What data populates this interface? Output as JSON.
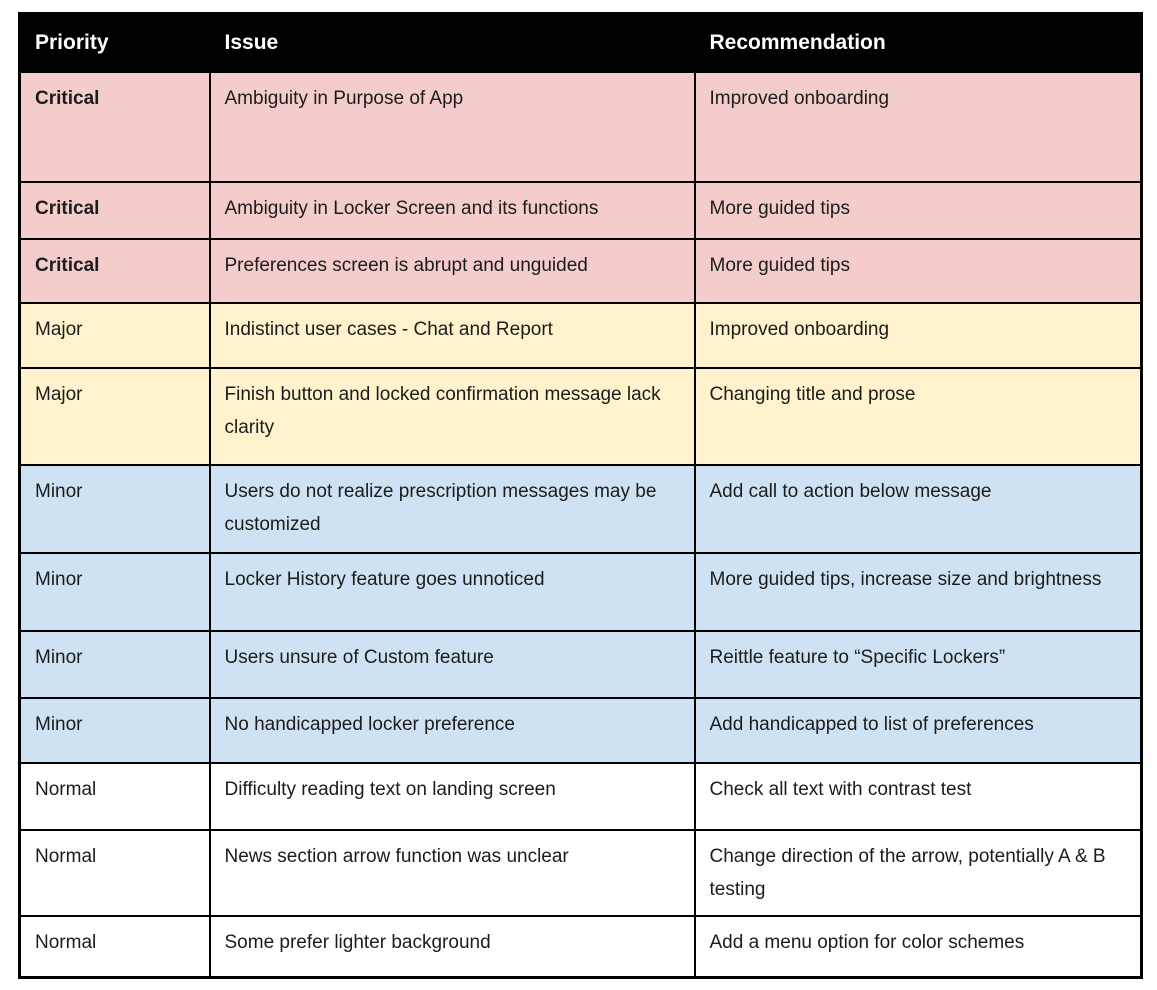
{
  "table": {
    "header": {
      "background": "#000000",
      "text_color": "#ffffff"
    },
    "columns": [
      {
        "label": "Priority"
      },
      {
        "label": "Issue"
      },
      {
        "label": "Recommendation"
      }
    ],
    "severity_colors": {
      "critical": "#f4cccc",
      "major": "#fff2cc",
      "minor": "#cfe2f3",
      "normal": "#ffffff"
    },
    "text_color": "#1c1c1c",
    "rows": [
      {
        "severity": "critical",
        "priority": "Critical",
        "issue": "Ambiguity in Purpose of App",
        "recommendation": "Improved onboarding"
      },
      {
        "severity": "critical",
        "priority": "Critical",
        "issue": "Ambiguity in Locker Screen and its functions",
        "recommendation": "More guided tips"
      },
      {
        "severity": "critical",
        "priority": "Critical",
        "issue": "Preferences screen is abrupt and unguided",
        "recommendation": "More guided tips"
      },
      {
        "severity": "major",
        "priority": "Major",
        "issue": "Indistinct user cases - Chat and Report",
        "recommendation": "Improved onboarding"
      },
      {
        "severity": "major",
        "priority": "Major",
        "issue": "Finish button and locked confirmation message lack clarity",
        "recommendation": "Changing title and prose"
      },
      {
        "severity": "minor",
        "priority": "Minor",
        "issue": "Users do not realize prescription messages may be customized",
        "recommendation": "Add call to action below message"
      },
      {
        "severity": "minor",
        "priority": "Minor",
        "issue": "Locker History feature goes unnoticed",
        "recommendation": "More guided tips, increase size and brightness"
      },
      {
        "severity": "minor",
        "priority": "Minor",
        "issue": "Users unsure of Custom feature",
        "recommendation": "Reittle feature to “Specific Lockers”"
      },
      {
        "severity": "minor",
        "priority": "Minor",
        "issue": "No handicapped locker preference",
        "recommendation": "Add handicapped to list of preferences"
      },
      {
        "severity": "normal",
        "priority": "Normal",
        "issue": "Difficulty reading text on landing screen",
        "recommendation": "Check all text with contrast test"
      },
      {
        "severity": "normal",
        "priority": "Normal",
        "issue": "News section arrow function was unclear",
        "recommendation": "Change direction of the arrow, potentially A & B testing"
      },
      {
        "severity": "normal",
        "priority": "Normal",
        "issue": "Some prefer lighter background",
        "recommendation": "Add a  menu option for color schemes"
      }
    ]
  }
}
